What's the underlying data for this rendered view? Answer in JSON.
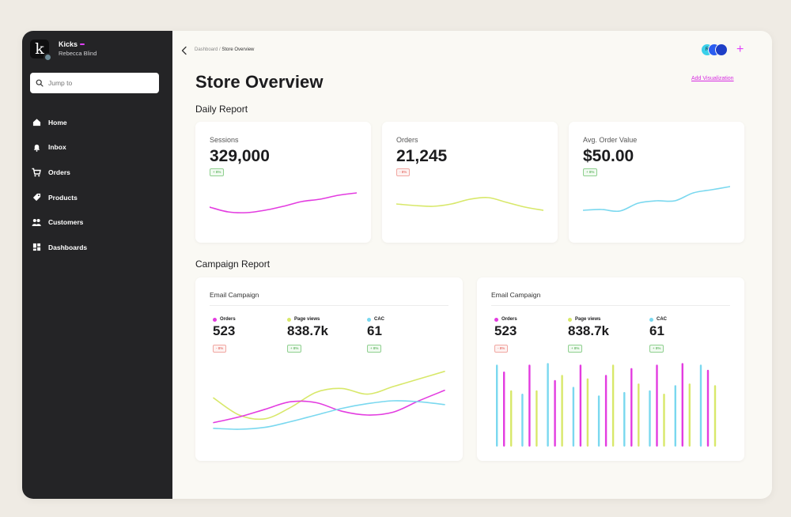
{
  "colors": {
    "magenta": "#e33ce0",
    "lime": "#d8e86a",
    "cyan": "#7ad8ef",
    "accent": "#d62be0"
  },
  "brand": {
    "name": "Kicks",
    "user": "Rebecca Blind",
    "logo_letter": "k"
  },
  "search": {
    "placeholder": "Jump to"
  },
  "nav": [
    {
      "label": "Home",
      "icon": "home-icon"
    },
    {
      "label": "Inbox",
      "icon": "bell-icon"
    },
    {
      "label": "Orders",
      "icon": "cart-icon"
    },
    {
      "label": "Products",
      "icon": "tag-icon"
    },
    {
      "label": "Customers",
      "icon": "users-icon"
    },
    {
      "label": "Dashboards",
      "icon": "dashboard-icon"
    }
  ],
  "header": {
    "breadcrumb": {
      "parent": "Dashboard",
      "separator": "/",
      "current": "Store Overview"
    },
    "avatar_initial": "R",
    "title": "Store Overview",
    "add_visualization": "Add Visualization"
  },
  "daily": {
    "title": "Daily Report",
    "cards": [
      {
        "label": "Sessions",
        "value": "329,000",
        "change": "+ 8%",
        "trend": "up",
        "color": "#e33ce0",
        "series": [
          20,
          14,
          13,
          16,
          21,
          27,
          30,
          35,
          38
        ]
      },
      {
        "label": "Orders",
        "value": "21,245",
        "change": "- 8%",
        "trend": "down",
        "color": "#d8e86a",
        "series": [
          24,
          22,
          21,
          24,
          30,
          32,
          26,
          20,
          16
        ]
      },
      {
        "label": "Avg. Order Value",
        "value": "$50.00",
        "change": "+ 8%",
        "trend": "up",
        "color": "#7ad8ef",
        "series": [
          16,
          17,
          15,
          25,
          28,
          28,
          38,
          42,
          46
        ]
      }
    ]
  },
  "campaign": {
    "title": "Campaign Report",
    "cards": [
      {
        "title": "Email Campaign",
        "chart": "line",
        "metrics": [
          {
            "name": "Orders",
            "value": "523",
            "change": "- 8%",
            "trend": "down",
            "color": "#e33ce0"
          },
          {
            "name": "Page views",
            "value": "838.7k",
            "change": "+ 8%",
            "trend": "up",
            "color": "#d8e86a"
          },
          {
            "name": "CAC",
            "value": "61",
            "change": "+ 8%",
            "trend": "up",
            "color": "#7ad8ef"
          }
        ],
        "series": [
          {
            "color": "#d8e86a",
            "values": [
              48,
              30,
              26,
              38,
              54,
              58,
              52,
              60,
              68,
              76
            ]
          },
          {
            "color": "#e33ce0",
            "values": [
              22,
              28,
              36,
              44,
              43,
              34,
              30,
              33,
              45,
              56
            ]
          },
          {
            "color": "#7ad8ef",
            "values": [
              16,
              15,
              17,
              23,
              30,
              37,
              42,
              45,
              44,
              41
            ]
          }
        ]
      },
      {
        "title": "Email Campaign",
        "chart": "bar",
        "metrics": [
          {
            "name": "Orders",
            "value": "523",
            "change": "- 8%",
            "trend": "down",
            "color": "#e33ce0"
          },
          {
            "name": "Page views",
            "value": "838.7k",
            "change": "+ 8%",
            "trend": "up",
            "color": "#d8e86a"
          },
          {
            "name": "CAC",
            "value": "61",
            "change": "+ 8%",
            "trend": "up",
            "color": "#7ad8ef"
          }
        ],
        "bar_groups": [
          [
            96,
            88,
            66
          ],
          [
            62,
            96,
            66
          ],
          [
            98,
            78,
            84
          ],
          [
            70,
            96,
            80
          ],
          [
            60,
            84,
            96
          ],
          [
            64,
            92,
            74
          ],
          [
            66,
            96,
            62
          ],
          [
            72,
            98,
            74
          ],
          [
            96,
            90,
            72
          ]
        ]
      }
    ]
  }
}
